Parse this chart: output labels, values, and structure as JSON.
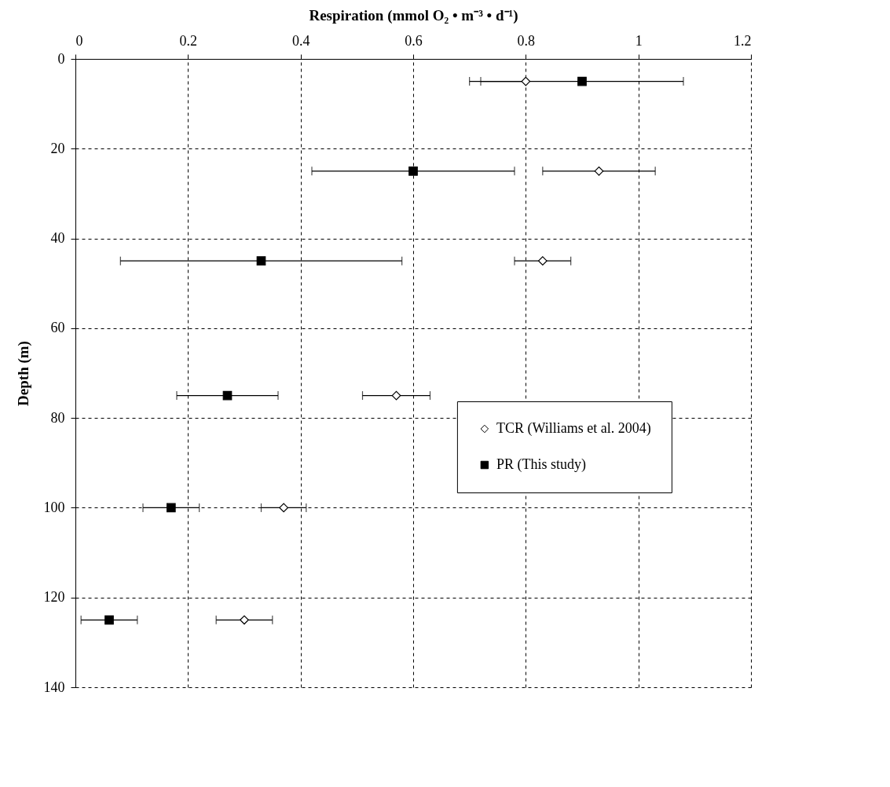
{
  "chart_data": {
    "type": "scatter",
    "xlabel": "Respiration (mmol O₂ • m⁻³ • d⁻¹)",
    "ylabel": "Depth (m)",
    "xlim": [
      0,
      1.2
    ],
    "xticks": [
      0,
      0.2,
      0.4,
      0.6,
      0.8,
      1,
      1.2
    ],
    "ylim": [
      140,
      0
    ],
    "yticks": [
      0,
      20,
      40,
      60,
      80,
      100,
      120,
      140
    ],
    "grid": true,
    "legend": "right",
    "series": [
      {
        "name": "TCR (Williams et al. 2004)",
        "color": "#000000",
        "marker": "diamond",
        "x": [
          0.8,
          0.93,
          0.83,
          0.57,
          0.37,
          0.3
        ],
        "values": [
          5,
          25,
          45,
          75,
          100,
          125
        ],
        "xerrors": [
          [
            0.7,
            0.8
          ],
          [
            0.83,
            1.03
          ],
          [
            0.78,
            0.88
          ],
          [
            0.51,
            0.63
          ],
          [
            0.33,
            0.41
          ],
          [
            0.25,
            0.35
          ]
        ]
      },
      {
        "name": "PR (This study)",
        "color": "#000000",
        "marker": "square",
        "x": [
          0.9,
          0.6,
          0.33,
          0.27,
          0.17,
          0.06
        ],
        "values": [
          5,
          25,
          45,
          75,
          100,
          125
        ],
        "xerrors": [
          [
            0.72,
            1.08
          ],
          [
            0.42,
            0.78
          ],
          [
            0.08,
            0.58
          ],
          [
            0.18,
            0.36
          ],
          [
            0.12,
            0.22
          ],
          [
            0.01,
            0.11
          ]
        ]
      }
    ]
  }
}
